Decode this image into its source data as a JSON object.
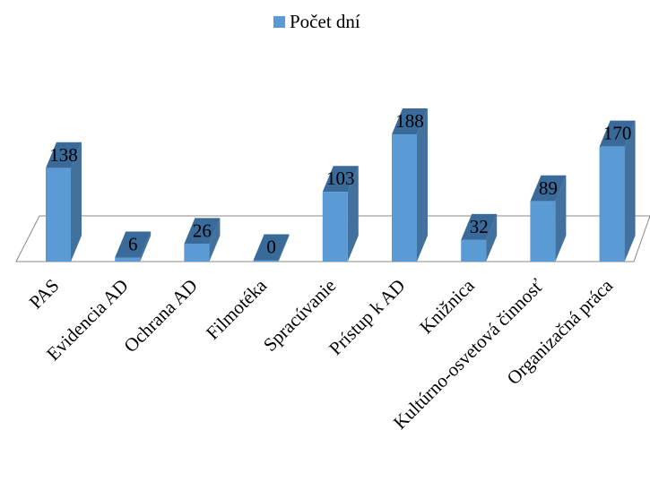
{
  "chart_data": {
    "type": "bar",
    "title": "",
    "xlabel": "",
    "ylabel": "",
    "categories": [
      "PAS",
      "Evidencia AD",
      "Ochrana AD",
      "Filmotéka",
      "Spracúvanie",
      "Prístup k AD",
      "Knižnica",
      "Kultúrno-osvetová činnosť",
      "Organizačná práca"
    ],
    "series": [
      {
        "name": "Počet dní",
        "values": [
          138,
          6,
          26,
          0,
          103,
          188,
          32,
          89,
          170
        ]
      }
    ],
    "legend_position": "top",
    "grid": false,
    "style": "3d-column",
    "colors": {
      "bar_front": "#5b9bd5",
      "bar_side": "#41719c",
      "bar_top": "#3a6a9a"
    }
  }
}
